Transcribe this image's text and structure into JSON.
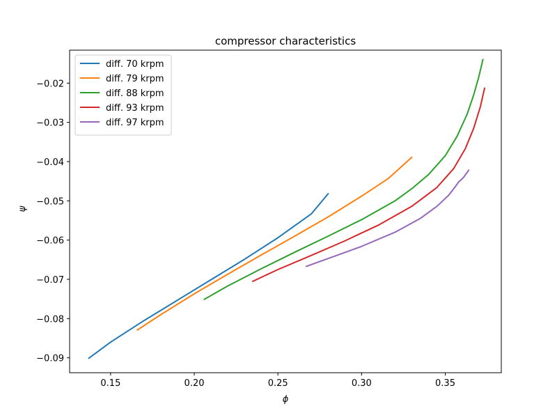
{
  "chart_data": {
    "type": "line",
    "title": "compressor characteristics",
    "xlabel": "ϕ",
    "ylabel": "ψ",
    "xlim": [
      0.1255,
      0.3835
    ],
    "ylim": [
      -0.0938,
      -0.0116
    ],
    "xticks": [
      0.15,
      0.2,
      0.25,
      0.3,
      0.35
    ],
    "xtick_labels": [
      "0.15",
      "0.20",
      "0.25",
      "0.30",
      "0.35"
    ],
    "yticks": [
      -0.09,
      -0.08,
      -0.07,
      -0.06,
      -0.05,
      -0.04,
      -0.03,
      -0.02
    ],
    "ytick_labels": [
      "−0.09",
      "−0.08",
      "−0.07",
      "−0.06",
      "−0.05",
      "−0.04",
      "−0.03",
      "−0.02"
    ],
    "grid": false,
    "legend_position": "upper-left",
    "series": [
      {
        "name": "diff. 70 krpm",
        "color": "#1f77b4",
        "x": [
          0.137,
          0.15,
          0.17,
          0.19,
          0.21,
          0.23,
          0.25,
          0.27,
          0.28
        ],
        "y": [
          -0.0901,
          -0.086,
          -0.0805,
          -0.0753,
          -0.0701,
          -0.0649,
          -0.0594,
          -0.0533,
          -0.0482
        ]
      },
      {
        "name": "diff. 79 krpm",
        "color": "#ff7f0e",
        "x": [
          0.166,
          0.18,
          0.2,
          0.22,
          0.24,
          0.26,
          0.28,
          0.3,
          0.316,
          0.33
        ],
        "y": [
          -0.0829,
          -0.079,
          -0.0737,
          -0.0687,
          -0.0638,
          -0.059,
          -0.0541,
          -0.0488,
          -0.0443,
          -0.0389
        ]
      },
      {
        "name": "diff. 88 krpm",
        "color": "#2ca02c",
        "x": [
          0.206,
          0.22,
          0.24,
          0.26,
          0.28,
          0.3,
          0.32,
          0.33,
          0.34,
          0.35,
          0.357,
          0.363,
          0.367,
          0.37,
          0.3725
        ],
        "y": [
          -0.0751,
          -0.0717,
          -0.0673,
          -0.0631,
          -0.059,
          -0.0548,
          -0.05,
          -0.0469,
          -0.0433,
          -0.0385,
          -0.0336,
          -0.028,
          -0.023,
          -0.0185,
          -0.014
        ]
      },
      {
        "name": "diff. 93 krpm",
        "color": "#d62728",
        "x": [
          0.235,
          0.25,
          0.27,
          0.29,
          0.31,
          0.33,
          0.345,
          0.355,
          0.362,
          0.367,
          0.371,
          0.3735
        ],
        "y": [
          -0.0705,
          -0.0675,
          -0.0639,
          -0.0602,
          -0.0562,
          -0.0514,
          -0.0466,
          -0.0418,
          -0.0367,
          -0.0315,
          -0.026,
          -0.0213
        ]
      },
      {
        "name": "diff. 97 krpm",
        "color": "#9467bd",
        "x": [
          0.267,
          0.28,
          0.3,
          0.32,
          0.335,
          0.345,
          0.352,
          0.356,
          0.358,
          0.361,
          0.364
        ],
        "y": [
          -0.0667,
          -0.0647,
          -0.0616,
          -0.058,
          -0.0545,
          -0.0514,
          -0.0486,
          -0.0464,
          -0.0452,
          -0.044,
          -0.0422
        ]
      }
    ]
  }
}
